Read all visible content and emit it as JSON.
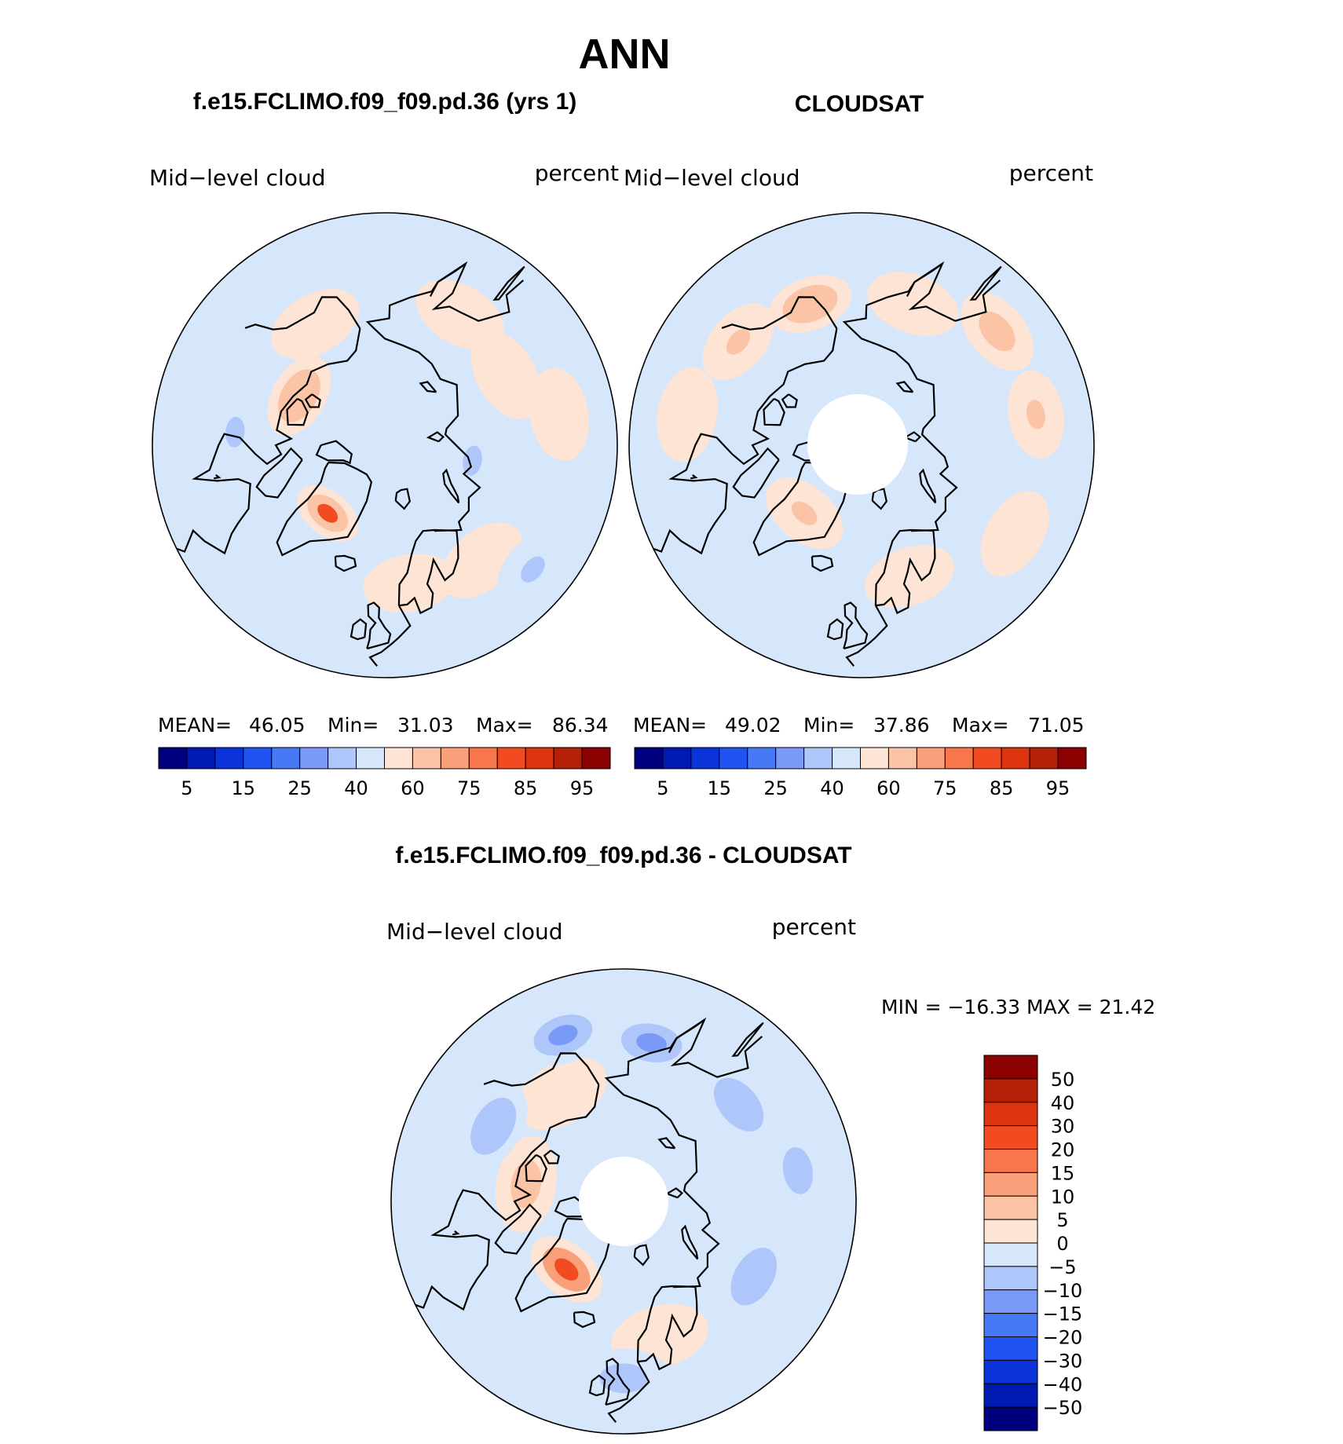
{
  "page_title": "ANN",
  "panels": [
    {
      "title": "f.e15.FCLIMO.f09_f09.pd.36 (yrs 1)",
      "left_label": "Mid−level cloud",
      "right_label": "percent",
      "stats": {
        "mean_label": "MEAN=",
        "mean": "46.05",
        "min_label": "Min=",
        "min": "31.03",
        "max_label": "Max=",
        "max": "86.34"
      },
      "has_pole_hole": false,
      "spots": [
        {
          "lon": -150,
          "lat": 62,
          "value": 55
        },
        {
          "lon": -120,
          "lat": 70,
          "value": 65
        },
        {
          "lon": -40,
          "lat": 72,
          "value": 82
        },
        {
          "lon": 10,
          "lat": 62,
          "value": 58
        },
        {
          "lon": 40,
          "lat": 60,
          "value": 56
        },
        {
          "lon": 100,
          "lat": 55,
          "value": 57
        },
        {
          "lon": 120,
          "lat": 62,
          "value": 55
        },
        {
          "lon": 150,
          "lat": 60,
          "value": 55
        },
        {
          "lon": 80,
          "lat": 72,
          "value": 36
        },
        {
          "lon": -95,
          "lat": 60,
          "value": 37
        },
        {
          "lon": 50,
          "lat": 52,
          "value": 35
        }
      ]
    },
    {
      "title": "CLOUDSAT",
      "left_label": "Mid−level cloud",
      "right_label": "percent",
      "stats": {
        "mean_label": "MEAN=",
        "mean": "49.02",
        "min_label": "Min=",
        "min": "37.86",
        "max_label": "Max=",
        "max": "71.05"
      },
      "has_pole_hole": true,
      "spots": [
        {
          "lon": -160,
          "lat": 60,
          "value": 66
        },
        {
          "lon": -130,
          "lat": 58,
          "value": 62
        },
        {
          "lon": -100,
          "lat": 55,
          "value": 55
        },
        {
          "lon": -40,
          "lat": 72,
          "value": 62
        },
        {
          "lon": 20,
          "lat": 62,
          "value": 58
        },
        {
          "lon": 60,
          "lat": 55,
          "value": 58
        },
        {
          "lon": 100,
          "lat": 55,
          "value": 62
        },
        {
          "lon": 130,
          "lat": 55,
          "value": 60
        },
        {
          "lon": 160,
          "lat": 60,
          "value": 56
        }
      ]
    }
  ],
  "difference_panel": {
    "title": "f.e15.FCLIMO.f09_f09.pd.36 - CLOUDSAT",
    "left_label": "Mid−level cloud",
    "right_label": "percent",
    "minmax_text": "MIN = −16.33 MAX =   21.42",
    "has_pole_hole": true,
    "spots": [
      {
        "lon": -40,
        "lat": 72,
        "value": 21
      },
      {
        "lon": -100,
        "lat": 70,
        "value": 6
      },
      {
        "lon": -150,
        "lat": 65,
        "value": 4
      },
      {
        "lon": 15,
        "lat": 62,
        "value": 3
      },
      {
        "lon": -160,
        "lat": 55,
        "value": -12
      },
      {
        "lon": -120,
        "lat": 60,
        "value": -10
      },
      {
        "lon": 60,
        "lat": 60,
        "value": -9
      },
      {
        "lon": 100,
        "lat": 55,
        "value": -8
      },
      {
        "lon": 130,
        "lat": 60,
        "value": -10
      },
      {
        "lon": 170,
        "lat": 58,
        "value": -11
      },
      {
        "lon": 0,
        "lat": 55,
        "value": -7
      }
    ]
  },
  "abs_colorbar": {
    "colors": [
      "#00007f",
      "#0019b0",
      "#0a33d9",
      "#1f54f2",
      "#4778f5",
      "#7a9af7",
      "#aec6fa",
      "#d6e6fb",
      "#fde4d4",
      "#fcc4a6",
      "#f9a07a",
      "#f7764c",
      "#f24b22",
      "#dd330f",
      "#b52008",
      "#8b0000"
    ],
    "tick_labels": [
      "5",
      "15",
      "25",
      "40",
      "60",
      "75",
      "85",
      "95"
    ]
  },
  "diff_colorbar": {
    "colors": [
      "#00007f",
      "#0019b0",
      "#0a33d9",
      "#1f54f2",
      "#4778f5",
      "#7a9af7",
      "#aec6fa",
      "#d6e6fb",
      "#fde4d4",
      "#fcc4a6",
      "#f9a07a",
      "#f7764c",
      "#f24b22",
      "#dd330f",
      "#b52008",
      "#8b0000"
    ],
    "tick_labels": [
      "50",
      "40",
      "30",
      "20",
      "15",
      "10",
      "5",
      "0",
      "−5",
      "−10",
      "−15",
      "−20",
      "−30",
      "−40",
      "−50"
    ]
  },
  "chart_data": [
    {
      "type": "heatmap",
      "title": "f.e15.FCLIMO.f09_f09.pd.36 (yrs 1)",
      "variable": "Mid-level cloud",
      "units": "percent",
      "projection": "north polar stereographic",
      "mean": 46.05,
      "min": 31.03,
      "max": 86.34,
      "levels": [
        5,
        10,
        15,
        20,
        25,
        30,
        40,
        50,
        60,
        70,
        75,
        80,
        85,
        90,
        95
      ]
    },
    {
      "type": "heatmap",
      "title": "CLOUDSAT",
      "variable": "Mid-level cloud",
      "units": "percent",
      "projection": "north polar stereographic",
      "mean": 49.02,
      "min": 37.86,
      "max": 71.05,
      "levels": [
        5,
        10,
        15,
        20,
        25,
        30,
        40,
        50,
        60,
        70,
        75,
        80,
        85,
        90,
        95
      ]
    },
    {
      "type": "heatmap",
      "title": "f.e15.FCLIMO.f09_f09.pd.36 - CLOUDSAT",
      "variable": "Mid-level cloud",
      "units": "percent",
      "projection": "north polar stereographic",
      "min": -16.33,
      "max": 21.42,
      "levels": [
        -50,
        -40,
        -30,
        -20,
        -15,
        -10,
        -5,
        0,
        5,
        10,
        15,
        20,
        30,
        40,
        50
      ]
    }
  ]
}
